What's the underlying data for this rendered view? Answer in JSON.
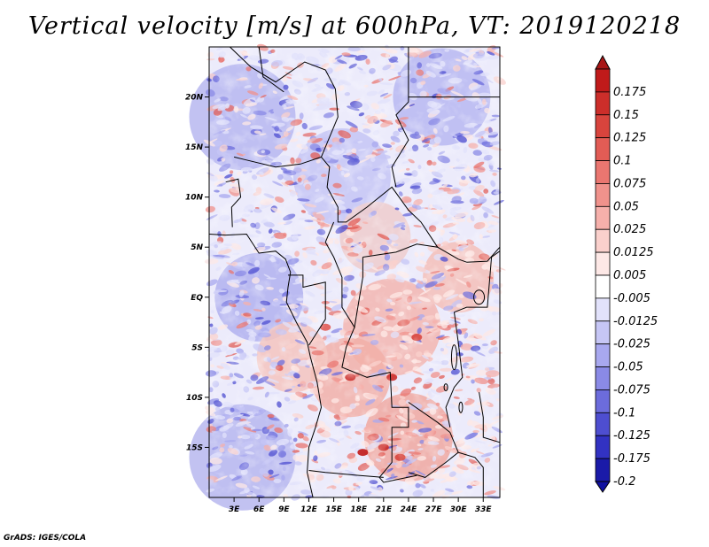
{
  "title": "Vertical velocity [m/s] at 600hPa, VT: 2019120218",
  "credit": "GrADS: IGES/COLA",
  "map": {
    "lon_range": [
      0,
      35
    ],
    "lat_range": [
      -20,
      25
    ],
    "x_ticks": [
      {
        "lon": 3,
        "label": "3E"
      },
      {
        "lon": 6,
        "label": "6E"
      },
      {
        "lon": 9,
        "label": "9E"
      },
      {
        "lon": 12,
        "label": "12E"
      },
      {
        "lon": 15,
        "label": "15E"
      },
      {
        "lon": 18,
        "label": "18E"
      },
      {
        "lon": 21,
        "label": "21E"
      },
      {
        "lon": 24,
        "label": "24E"
      },
      {
        "lon": 27,
        "label": "27E"
      },
      {
        "lon": 30,
        "label": "30E"
      },
      {
        "lon": 33,
        "label": "33E"
      }
    ],
    "y_ticks": [
      {
        "lat": 20,
        "label": "20N"
      },
      {
        "lat": 15,
        "label": "15N"
      },
      {
        "lat": 10,
        "label": "10N"
      },
      {
        "lat": 5,
        "label": "5N"
      },
      {
        "lat": 0,
        "label": "EQ"
      },
      {
        "lat": -5,
        "label": "5S"
      },
      {
        "lat": -10,
        "label": "10S"
      },
      {
        "lat": -15,
        "label": "15S"
      }
    ]
  },
  "colorbar": {
    "levels": [
      {
        "label": "0.175",
        "color": "#c01a1a"
      },
      {
        "label": "0.15",
        "color": "#cc2e2a"
      },
      {
        "label": "0.125",
        "color": "#d8443d"
      },
      {
        "label": "0.1",
        "color": "#e25c55"
      },
      {
        "label": "0.075",
        "color": "#ea7670"
      },
      {
        "label": "0.05",
        "color": "#f0928c"
      },
      {
        "label": "0.025",
        "color": "#f6b0ab"
      },
      {
        "label": "0.0125",
        "color": "#fad0cc"
      },
      {
        "label": "0.005",
        "color": "#fde8e6"
      },
      {
        "label": "-0.005",
        "color": "#ffffff"
      },
      {
        "label": "-0.0125",
        "color": "#e2e2fb"
      },
      {
        "label": "-0.025",
        "color": "#c6c6f5"
      },
      {
        "label": "-0.05",
        "color": "#a8a8ef"
      },
      {
        "label": "-0.075",
        "color": "#8a8ae6"
      },
      {
        "label": "-0.1",
        "color": "#6c6cdc"
      },
      {
        "label": "-0.125",
        "color": "#4e4ed0"
      },
      {
        "label": "-0.175",
        "color": "#3232c2"
      },
      {
        "label": "-0.2",
        "color": "#1a1aa8"
      }
    ],
    "top_color": "#a81616",
    "bottom_color": "#1010a0"
  }
}
